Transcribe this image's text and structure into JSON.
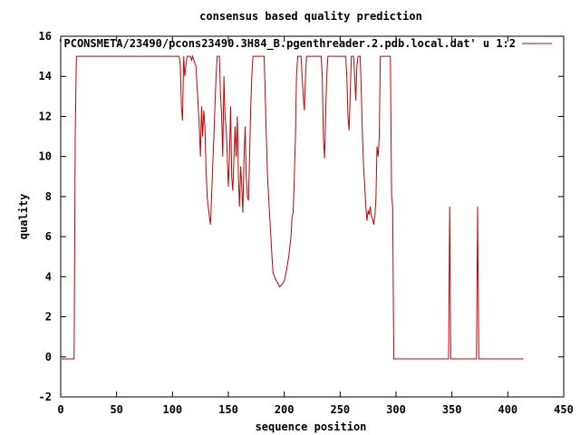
{
  "chart_data": {
    "type": "line",
    "title": "consensus based quality prediction",
    "xlabel": "sequence position",
    "ylabel": "quality",
    "xlim": [
      0,
      450
    ],
    "ylim": [
      -2,
      16
    ],
    "xticks": [
      0,
      50,
      100,
      150,
      200,
      250,
      300,
      350,
      400,
      450
    ],
    "yticks": [
      -2,
      0,
      2,
      4,
      6,
      8,
      10,
      12,
      14,
      16
    ],
    "legend_position": "top-right",
    "colors": {
      "series": "#cc0000",
      "frame": "#000000",
      "background": "#ffffff"
    },
    "series": [
      {
        "name": "'PCONSMETA/23490/pcons23490.3H84_B.pgenthreader.2.pdb.local.dat' u 1:2",
        "points": [
          [
            1,
            -0.1
          ],
          [
            12,
            -0.1
          ],
          [
            13,
            11
          ],
          [
            14,
            15
          ],
          [
            106,
            15
          ],
          [
            107,
            14.5
          ],
          [
            108,
            12.5
          ],
          [
            109,
            11.8
          ],
          [
            110,
            15
          ],
          [
            111,
            14
          ],
          [
            112,
            14.5
          ],
          [
            113,
            15
          ],
          [
            116,
            15
          ],
          [
            117,
            14.8
          ],
          [
            118,
            15
          ],
          [
            121,
            14.5
          ],
          [
            122,
            13.5
          ],
          [
            123,
            12.5
          ],
          [
            124,
            11.5
          ],
          [
            125,
            10
          ],
          [
            126,
            12.5
          ],
          [
            127,
            11
          ],
          [
            128,
            12.3
          ],
          [
            129,
            11.5
          ],
          [
            130,
            9.5
          ],
          [
            131,
            8
          ],
          [
            132,
            7.5
          ],
          [
            133,
            7
          ],
          [
            134,
            6.6
          ],
          [
            135,
            8
          ],
          [
            136,
            9.5
          ],
          [
            137,
            11
          ],
          [
            138,
            12.5
          ],
          [
            139,
            14
          ],
          [
            140,
            15
          ],
          [
            142,
            15
          ],
          [
            143,
            13
          ],
          [
            144,
            12
          ],
          [
            145,
            10
          ],
          [
            146,
            14
          ],
          [
            147,
            12
          ],
          [
            148,
            11.5
          ],
          [
            149,
            10
          ],
          [
            150,
            8.5
          ],
          [
            151,
            10
          ],
          [
            152,
            12.5
          ],
          [
            153,
            9
          ],
          [
            154,
            8.3
          ],
          [
            155,
            10
          ],
          [
            156,
            11.5
          ],
          [
            157,
            10
          ],
          [
            158,
            12
          ],
          [
            159,
            9
          ],
          [
            160,
            7.5
          ],
          [
            161,
            9.5
          ],
          [
            162,
            8.5
          ],
          [
            163,
            7.2
          ],
          [
            164,
            10
          ],
          [
            165,
            11.5
          ],
          [
            166,
            9
          ],
          [
            167,
            8
          ],
          [
            168,
            7.8
          ],
          [
            169,
            10
          ],
          [
            170,
            12.5
          ],
          [
            171,
            14
          ],
          [
            172,
            15
          ],
          [
            182,
            15
          ],
          [
            183,
            13
          ],
          [
            184,
            11
          ],
          [
            185,
            9
          ],
          [
            186,
            8
          ],
          [
            187,
            7
          ],
          [
            188,
            6
          ],
          [
            189,
            5
          ],
          [
            190,
            4.2
          ],
          [
            192,
            3.9
          ],
          [
            194,
            3.7
          ],
          [
            196,
            3.5
          ],
          [
            198,
            3.6
          ],
          [
            200,
            3.8
          ],
          [
            202,
            4.3
          ],
          [
            204,
            5
          ],
          [
            206,
            6
          ],
          [
            207,
            7
          ],
          [
            208,
            7.2
          ],
          [
            209,
            9
          ],
          [
            210,
            11
          ],
          [
            211,
            14
          ],
          [
            212,
            15
          ],
          [
            215,
            15
          ],
          [
            216,
            14
          ],
          [
            217,
            13
          ],
          [
            218,
            12.3
          ],
          [
            219,
            14
          ],
          [
            220,
            15
          ],
          [
            233,
            15
          ],
          [
            234,
            14
          ],
          [
            235,
            11
          ],
          [
            236,
            9.9
          ],
          [
            237,
            12
          ],
          [
            238,
            14
          ],
          [
            239,
            15
          ],
          [
            255,
            15
          ],
          [
            256,
            14
          ],
          [
            257,
            12
          ],
          [
            258,
            11.3
          ],
          [
            259,
            13
          ],
          [
            260,
            15
          ],
          [
            262,
            15
          ],
          [
            263,
            14
          ],
          [
            264,
            12.8
          ],
          [
            265,
            14.5
          ],
          [
            266,
            15
          ],
          [
            268,
            15
          ],
          [
            269,
            13
          ],
          [
            270,
            11
          ],
          [
            271,
            9.5
          ],
          [
            272,
            8.5
          ],
          [
            273,
            7.5
          ],
          [
            274,
            6.8
          ],
          [
            275,
            7.3
          ],
          [
            276,
            7.1
          ],
          [
            277,
            7.5
          ],
          [
            278,
            7
          ],
          [
            279,
            6.9
          ],
          [
            280,
            6.6
          ],
          [
            281,
            7
          ],
          [
            282,
            7.8
          ],
          [
            283,
            10.5
          ],
          [
            284,
            10
          ],
          [
            285,
            11
          ],
          [
            286,
            15
          ],
          [
            295,
            15
          ],
          [
            296,
            8
          ],
          [
            297,
            7.5
          ],
          [
            298,
            -0.1
          ],
          [
            347,
            -0.1
          ],
          [
            348,
            7.5
          ],
          [
            349,
            -0.1
          ],
          [
            372,
            -0.1
          ],
          [
            373,
            7.5
          ],
          [
            374,
            -0.1
          ],
          [
            414,
            -0.1
          ]
        ]
      }
    ]
  }
}
